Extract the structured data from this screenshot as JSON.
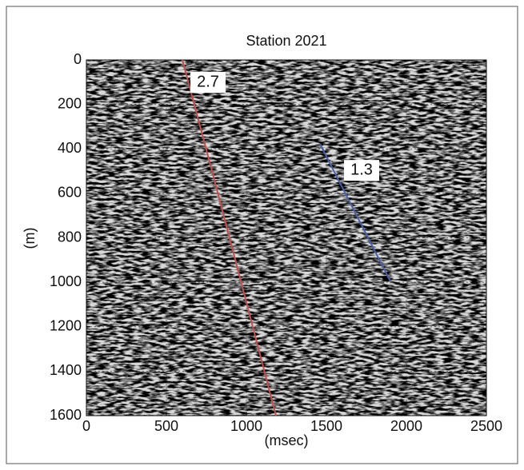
{
  "chart_data": {
    "type": "line",
    "title": "Station 2021",
    "xlabel": "(msec)",
    "ylabel": "(m)",
    "xlim": [
      0,
      2500
    ],
    "xticks": [
      0,
      500,
      1000,
      1500,
      2000,
      2500
    ],
    "ylim": [
      0,
      1600
    ],
    "yticks": [
      0,
      200,
      400,
      600,
      800,
      1000,
      1200,
      1400,
      1600
    ],
    "y_inverted": true,
    "grid": true,
    "series": [
      {
        "name": "2.7",
        "color": "#c0504d",
        "x": [
          600,
          800,
          1185
        ],
        "values": [
          0,
          540,
          1600
        ]
      },
      {
        "name": "1.3",
        "color": "#4a5fa8",
        "x": [
          1460,
          1900
        ],
        "values": [
          378,
          996
        ]
      }
    ]
  }
}
